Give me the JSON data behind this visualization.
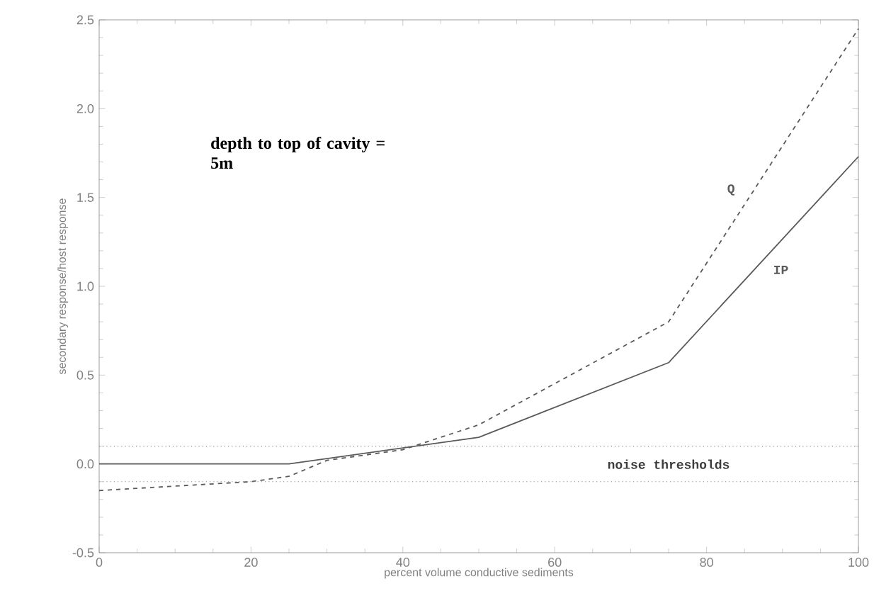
{
  "chart_data": {
    "type": "line",
    "xlabel": "percent volume conductive sediments",
    "ylabel": "secondary response/host response",
    "x": [
      0,
      25,
      50,
      75,
      100
    ],
    "series": [
      {
        "name": "IP",
        "color": "#5a5a5a",
        "line_style": "solid",
        "values": [
          0,
          0,
          0.15,
          0.57,
          1.73
        ]
      },
      {
        "name": "Q",
        "color": "#5a5a5a",
        "line_style": "dashed",
        "x": [
          0,
          20,
          25,
          30,
          40,
          50,
          75,
          100
        ],
        "values": [
          -0.15,
          -0.1,
          -0.07,
          0.02,
          0.08,
          0.22,
          0.8,
          2.45
        ]
      }
    ],
    "xlim": [
      0,
      100
    ],
    "xticks": [
      0,
      20,
      40,
      60,
      80,
      100
    ],
    "ylim": [
      -0.5,
      2.5
    ],
    "yticks": [
      {
        "value": -0.5,
        "label": "-0.5"
      },
      {
        "value": 0,
        "label": "0.0"
      },
      {
        "value": 0.5,
        "label": "0.5"
      },
      {
        "value": 1,
        "label": "1.0"
      },
      {
        "value": 1.5,
        "label": "1.5"
      },
      {
        "value": 2,
        "label": "2.0"
      },
      {
        "value": 2.5,
        "label": "2.5"
      }
    ],
    "ref_lines": [
      {
        "axis": "y",
        "value": 0.1,
        "color": "#8a8a8a",
        "line_style": "dotted"
      },
      {
        "axis": "y",
        "value": -0.1,
        "color": "#8a8a8a",
        "line_style": "dotted"
      }
    ],
    "annotations": [
      "depth to top of cavity = 5m",
      "noise thresholds"
    ],
    "grid": false,
    "legend": false,
    "marker": "none"
  }
}
